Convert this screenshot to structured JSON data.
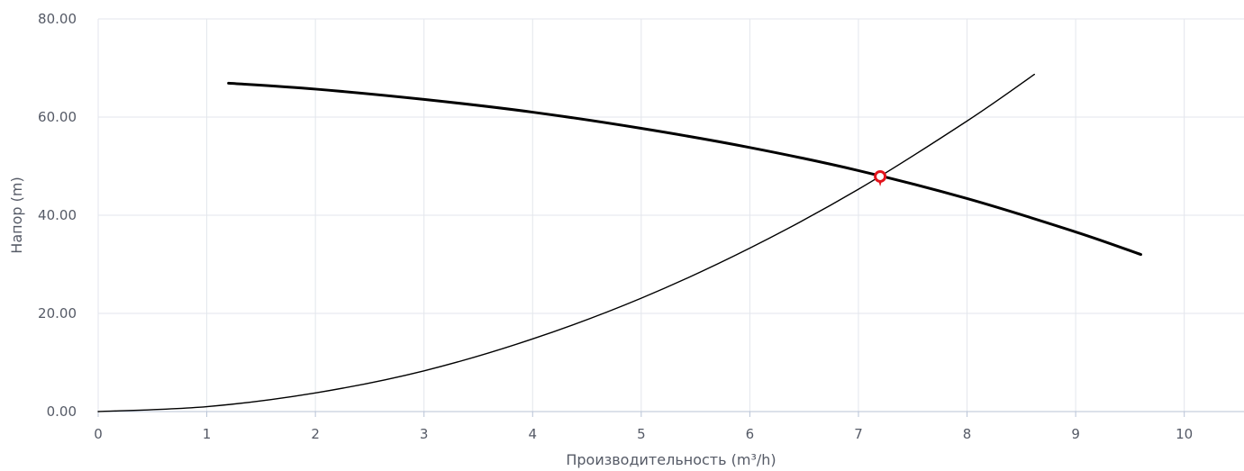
{
  "chart_data": {
    "type": "line",
    "xlabel": "Производительность (m³/h)",
    "ylabel": "Напор (m)",
    "xlim": [
      0,
      10.55
    ],
    "ylim": [
      0,
      80
    ],
    "x_ticks": [
      "0",
      "1",
      "2",
      "3",
      "4",
      "5",
      "6",
      "7",
      "8",
      "9",
      "10"
    ],
    "y_ticks": [
      "0.00",
      "20.00",
      "40.00",
      "60.00",
      "80.00"
    ],
    "grid": true,
    "legend": "none",
    "series": [
      {
        "x": [
          1.2,
          2,
          3,
          4,
          5,
          6,
          7,
          8,
          9,
          9.6
        ],
        "y": [
          66.9,
          65.7,
          63.6,
          61.0,
          57.7,
          53.8,
          49.1,
          43.4,
          36.6,
          32.0
        ],
        "color": "#000000"
      },
      {
        "x": [
          0,
          1,
          2,
          3,
          4,
          5,
          6,
          7,
          8,
          8.62
        ],
        "y": [
          0,
          1.0,
          3.8,
          8.3,
          14.8,
          23.1,
          33.3,
          45.3,
          59.2,
          68.7
        ],
        "color": "#000000"
      }
    ],
    "operating_point": {
      "x": 7.2,
      "y": 47.9,
      "color": "#e3141c"
    }
  }
}
